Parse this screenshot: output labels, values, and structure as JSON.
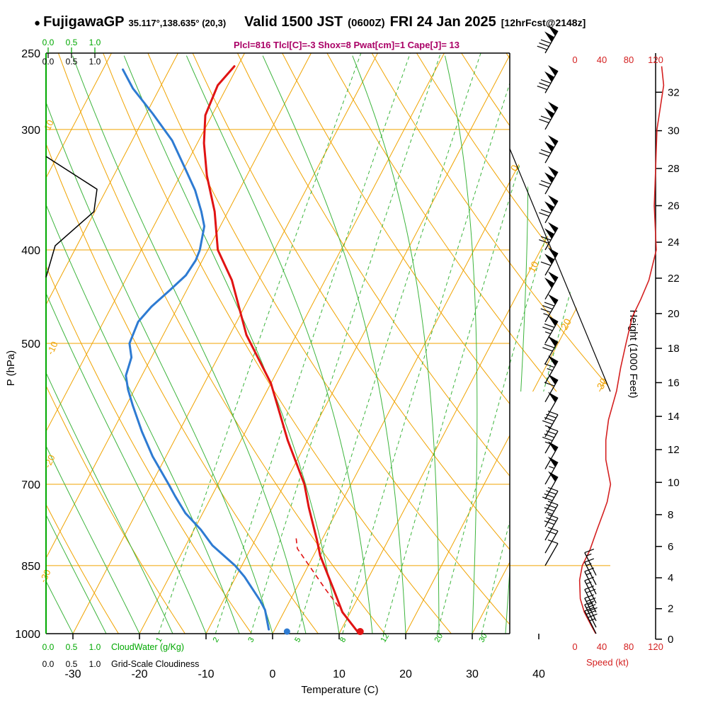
{
  "header": {
    "bullet": "●",
    "station": "FujigawaGP",
    "coords": "35.117°,138.635° (20,3)",
    "valid_label": "Valid 1500 JST",
    "valid_z": "(0600Z)",
    "valid_date": "FRI 24 Jan 2025",
    "fcst_tag": "[12hrFcst@2148z]",
    "indices_line": "Plcl=816 Tlcl[C]=-3 Shox=8 Pwat[cm]=1 Cape[J]= 13"
  },
  "axes": {
    "pressure_label": "P (hPa)",
    "pressure_ticks": [
      250,
      300,
      400,
      500,
      700,
      850,
      1000
    ],
    "temp_label": "Temperature (C)",
    "temp_ticks": [
      -30,
      -20,
      -10,
      0,
      10,
      20,
      30,
      40
    ],
    "height_label": "Height (1000 Feet)",
    "height_ticks": [
      0,
      2,
      4,
      6,
      8,
      10,
      12,
      14,
      16,
      18,
      20,
      22,
      24,
      26,
      28,
      30,
      32
    ],
    "speed_label": "Speed (kt)",
    "speed_ticks": [
      0,
      40,
      80,
      120
    ],
    "cloud_scale_ticks": [
      "0.0",
      "0.5",
      "1.0"
    ],
    "cloudwater_label": "CloudWater (g/Kg)",
    "cloudiness_label": "Grid-Scale Cloudiness",
    "isotherm_labels": [
      0,
      10,
      20,
      30
    ],
    "dry_adiabat_labels_c": [
      10,
      -10,
      -20,
      -30
    ],
    "mixing_ratio_values": [
      1,
      2,
      3,
      5,
      8,
      12,
      20,
      30
    ]
  },
  "colors": {
    "grid_orange": "#f0a300",
    "grid_green": "#3cb43c",
    "label_green": "#00a800",
    "temp_red": "#e01313",
    "dewpoint_blue": "#2e7bd2",
    "speed_red": "#d42020",
    "header_magenta": "#aa0066",
    "black": "#000000"
  },
  "chart_data": {
    "type": "line",
    "subtype": "skew-t-log-p-sounding",
    "title": "FujigawaGP Valid 1500 JST (0600Z) FRI 24 Jan 2025",
    "xlabel": "Temperature (C)",
    "ylabel": "P (hPa)",
    "pressure_range_hpa": [
      250,
      1000
    ],
    "temp_axis_range_c": [
      -37,
      45
    ],
    "indices": {
      "Plcl": 816,
      "Tlcl_C": -3,
      "Shox": 8,
      "Pwat_cm": 1,
      "Cape_J": 13
    },
    "temperature_c": [
      [
        1000,
        13
      ],
      [
        950,
        8.8
      ],
      [
        900,
        5.7
      ],
      [
        830,
        1
      ],
      [
        800,
        -0.7
      ],
      [
        740,
        -4.5
      ],
      [
        700,
        -7
      ],
      [
        630,
        -13
      ],
      [
        550,
        -20
      ],
      [
        490,
        -27.5
      ],
      [
        430,
        -34
      ],
      [
        400,
        -38.5
      ],
      [
        365,
        -42
      ],
      [
        335,
        -46
      ],
      [
        310,
        -49
      ],
      [
        290,
        -51
      ],
      [
        270,
        -51.5
      ],
      [
        258,
        -50.5
      ]
    ],
    "dewpoint_c": [
      [
        990,
        -0.9
      ],
      [
        945,
        -3
      ],
      [
        925,
        -4.4
      ],
      [
        873,
        -8.7
      ],
      [
        850,
        -11
      ],
      [
        810,
        -16
      ],
      [
        780,
        -19
      ],
      [
        750,
        -22.6
      ],
      [
        720,
        -25.5
      ],
      [
        700,
        -27.4
      ],
      [
        655,
        -32
      ],
      [
        617,
        -35.6
      ],
      [
        580,
        -39
      ],
      [
        558,
        -41
      ],
      [
        540,
        -42.4
      ],
      [
        517,
        -43
      ],
      [
        500,
        -44.4
      ],
      [
        475,
        -44.8
      ],
      [
        458,
        -44
      ],
      [
        440,
        -42.5
      ],
      [
        425,
        -41.3
      ],
      [
        410,
        -41
      ],
      [
        400,
        -41.2
      ],
      [
        378,
        -42.4
      ],
      [
        365,
        -44
      ],
      [
        347,
        -46.6
      ],
      [
        330,
        -49.7
      ],
      [
        308,
        -54
      ],
      [
        289,
        -59
      ],
      [
        272,
        -64
      ],
      [
        260,
        -67
      ]
    ],
    "parcel_c": [
      [
        1000,
        13
      ],
      [
        900,
        4.5
      ],
      [
        816,
        -3
      ],
      [
        790,
        -4.3
      ]
    ],
    "surface_temp_c": 13,
    "surface_dewpoint_c": 2,
    "wind_speed_kt": [
      [
        258,
        129
      ],
      [
        270,
        132
      ],
      [
        300,
        122
      ],
      [
        330,
        120
      ],
      [
        360,
        118
      ],
      [
        400,
        121
      ],
      [
        430,
        110
      ],
      [
        450,
        98
      ],
      [
        470,
        85
      ],
      [
        500,
        76
      ],
      [
        530,
        68
      ],
      [
        560,
        62
      ],
      [
        600,
        50
      ],
      [
        630,
        46
      ],
      [
        660,
        46
      ],
      [
        700,
        53
      ],
      [
        730,
        48
      ],
      [
        750,
        42
      ],
      [
        780,
        33
      ],
      [
        820,
        22
      ],
      [
        850,
        11
      ],
      [
        880,
        7
      ],
      [
        920,
        8
      ],
      [
        950,
        14
      ],
      [
        980,
        24
      ],
      [
        1000,
        31
      ]
    ],
    "wind_barb_levels_main": [
      250,
      275,
      300,
      325,
      350,
      375,
      400,
      425,
      450,
      475,
      500,
      525,
      550,
      575,
      600,
      625,
      650,
      675,
      700,
      725,
      750,
      775,
      800,
      825,
      850
    ],
    "wind_barb_levels_sfc": [
      870,
      890,
      910,
      930,
      950,
      970,
      985,
      1000
    ],
    "cloudiness_profile": [
      [
        320,
        0.0
      ],
      [
        346,
        1.0
      ],
      [
        365,
        0.94
      ],
      [
        396,
        0.18
      ],
      [
        427,
        0.0
      ]
    ],
    "cloud_water_profile": [
      [
        250,
        0.0
      ],
      [
        1000,
        0.0
      ]
    ],
    "legend_position": "none",
    "grid": true
  }
}
